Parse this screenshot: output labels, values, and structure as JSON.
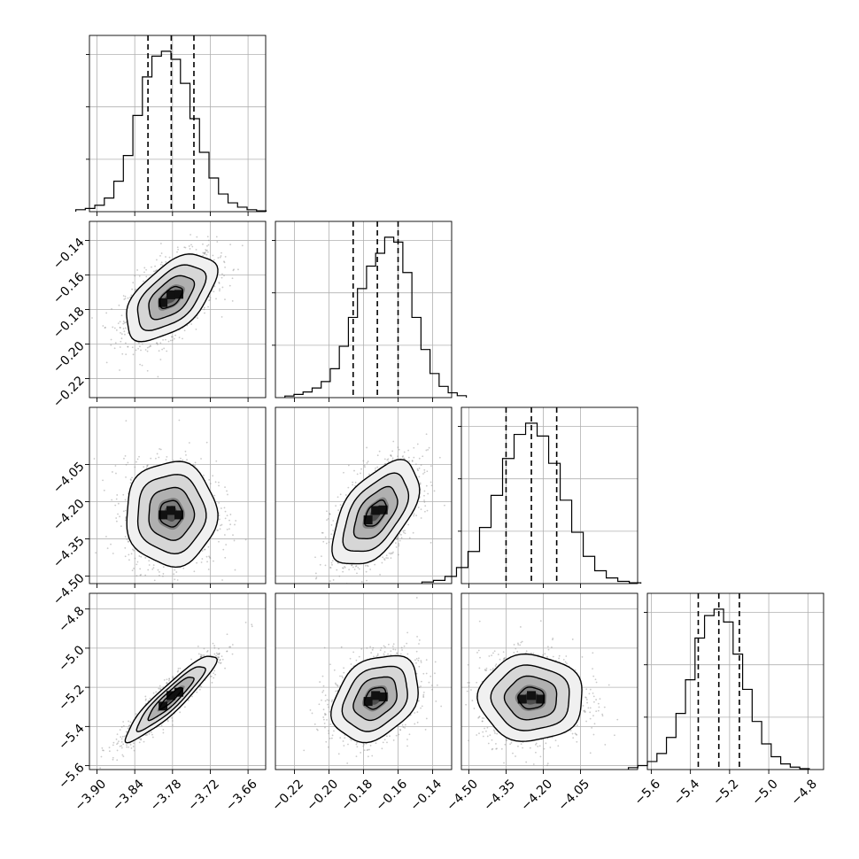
{
  "chart_data": {
    "type": "corner",
    "n_params": 4,
    "params": [
      {
        "lim": [
          -3.912,
          -3.632
        ],
        "mean": -3.7825,
        "sd": 0.036,
        "q16": -3.819,
        "q50": -3.782,
        "q84": -3.746,
        "ticks": [
          -3.9,
          -3.84,
          -3.78,
          -3.72,
          -3.66
        ],
        "tick_labels": [
          "−3.90",
          "−3.84",
          "−3.78",
          "−3.72",
          "−3.66"
        ],
        "hist_bins": [
          0.012,
          0.02,
          0.04,
          0.085,
          0.19,
          0.35,
          0.6,
          0.84,
          0.97,
          1.0,
          0.95,
          0.8,
          0.58,
          0.37,
          0.21,
          0.11,
          0.055,
          0.028,
          0.012,
          0.005
        ]
      },
      {
        "lim": [
          -0.231,
          -0.129
        ],
        "mean": -0.173,
        "sd": 0.0125,
        "q16": -0.186,
        "q50": -0.172,
        "q84": -0.16,
        "ticks": [
          -0.22,
          -0.2,
          -0.18,
          -0.16,
          -0.14
        ],
        "tick_labels": [
          "−0.22",
          "−0.20",
          "−0.18",
          "−0.16",
          "−0.14"
        ],
        "hist_bins": [
          0.01,
          0.02,
          0.035,
          0.06,
          0.1,
          0.18,
          0.32,
          0.5,
          0.68,
          0.82,
          0.9,
          1.0,
          0.97,
          0.78,
          0.5,
          0.3,
          0.15,
          0.07,
          0.03,
          0.012
        ]
      },
      {
        "lim": [
          -4.53,
          -3.82
        ],
        "mean": -4.248,
        "sd": 0.105,
        "q16": -4.35,
        "q50": -4.248,
        "q84": -4.146,
        "ticks": [
          -4.5,
          -4.35,
          -4.2,
          -4.05
        ],
        "tick_labels": [
          "−4.50",
          "−4.35",
          "−4.20",
          "−4.05"
        ],
        "hist_bins": [
          0.01,
          0.02,
          0.045,
          0.1,
          0.2,
          0.35,
          0.55,
          0.78,
          0.93,
          1.0,
          0.92,
          0.75,
          0.52,
          0.32,
          0.17,
          0.08,
          0.035,
          0.014,
          0.005
        ]
      },
      {
        "lim": [
          -5.62,
          -4.72
        ],
        "mean": -5.255,
        "sd": 0.11,
        "q16": -5.36,
        "q50": -5.255,
        "q84": -5.15,
        "ticks": [
          -5.6,
          -5.4,
          -5.2,
          -5.0,
          -4.8
        ],
        "tick_labels": [
          "−5.6",
          "−5.4",
          "−5.2",
          "−5.0",
          "−4.8"
        ],
        "hist_bins": [
          0.012,
          0.025,
          0.05,
          0.1,
          0.2,
          0.35,
          0.56,
          0.82,
          0.96,
          1.0,
          0.92,
          0.72,
          0.5,
          0.3,
          0.16,
          0.08,
          0.035,
          0.015,
          0.006
        ]
      }
    ],
    "correlations": [
      [
        1.0,
        0.55,
        0.0,
        0.92
      ],
      [
        0.55,
        1.0,
        0.55,
        0.3
      ],
      [
        0.0,
        0.55,
        1.0,
        0.0
      ],
      [
        0.92,
        0.3,
        0.0,
        1.0
      ]
    ],
    "contour_levels_sigma": [
      0.5,
      1.0,
      1.5,
      2.0
    ],
    "quantile_lines": "dashed",
    "grid": true
  }
}
